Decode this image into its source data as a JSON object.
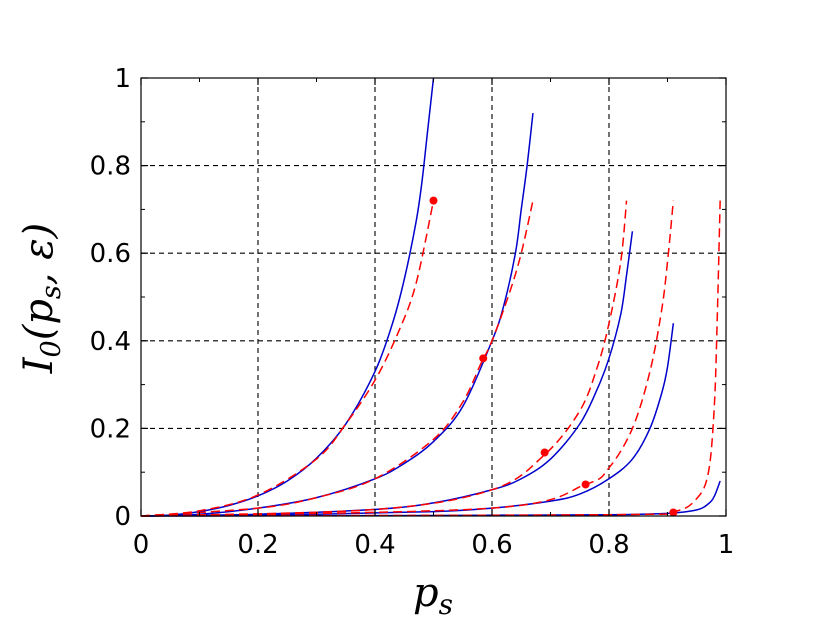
{
  "chart_data": {
    "type": "line",
    "xlabel": "p_s",
    "ylabel": "I_0(p_s, ε)",
    "xlim": [
      0,
      1
    ],
    "ylim": [
      0,
      1
    ],
    "x_ticks": [
      "0",
      "0.2",
      "0.4",
      "0.6",
      "0.8",
      "1"
    ],
    "y_ticks": [
      "0",
      "0.2",
      "0.4",
      "0.6",
      "0.8",
      "1"
    ],
    "grid": true,
    "series": [
      {
        "style": "solid",
        "color": "#0000cc",
        "x": [
          0.0,
          0.05,
          0.1,
          0.15,
          0.2,
          0.25,
          0.3,
          0.35,
          0.4,
          0.43,
          0.45,
          0.47,
          0.48,
          0.49,
          0.5
        ],
        "y": [
          0.0,
          0.002,
          0.01,
          0.024,
          0.046,
          0.08,
          0.132,
          0.21,
          0.33,
          0.44,
          0.54,
          0.67,
          0.76,
          0.88,
          1.0
        ]
      },
      {
        "style": "solid",
        "color": "#0000cc",
        "x": [
          0.0,
          0.1,
          0.2,
          0.3,
          0.4,
          0.45,
          0.5,
          0.55,
          0.6,
          0.62,
          0.64,
          0.65,
          0.66,
          0.67
        ],
        "y": [
          0.0,
          0.004,
          0.018,
          0.042,
          0.085,
          0.12,
          0.17,
          0.25,
          0.4,
          0.48,
          0.6,
          0.7,
          0.8,
          0.92
        ]
      },
      {
        "style": "solid",
        "color": "#0000cc",
        "x": [
          0.0,
          0.2,
          0.4,
          0.5,
          0.6,
          0.65,
          0.7,
          0.75,
          0.78,
          0.8,
          0.82,
          0.83,
          0.84
        ],
        "y": [
          0.0,
          0.004,
          0.015,
          0.03,
          0.06,
          0.085,
          0.13,
          0.21,
          0.29,
          0.36,
          0.46,
          0.55,
          0.65
        ]
      },
      {
        "style": "solid",
        "color": "#0000cc",
        "x": [
          0.0,
          0.3,
          0.5,
          0.6,
          0.7,
          0.75,
          0.8,
          0.84,
          0.87,
          0.89,
          0.9,
          0.91
        ],
        "y": [
          0.0,
          0.004,
          0.01,
          0.018,
          0.034,
          0.05,
          0.085,
          0.13,
          0.2,
          0.28,
          0.34,
          0.44
        ]
      },
      {
        "style": "solid",
        "color": "#0000cc",
        "x": [
          0.0,
          0.5,
          0.8,
          0.9,
          0.95,
          0.97,
          0.98,
          0.99
        ],
        "y": [
          0.0,
          0.001,
          0.003,
          0.006,
          0.014,
          0.028,
          0.045,
          0.08
        ]
      },
      {
        "style": "dashed",
        "color": "#ff0000",
        "x": [
          0.0,
          0.1,
          0.2,
          0.3,
          0.35,
          0.4,
          0.44,
          0.47,
          0.5
        ],
        "y": [
          0.0,
          0.012,
          0.048,
          0.13,
          0.21,
          0.31,
          0.42,
          0.53,
          0.72
        ]
      },
      {
        "style": "dashed",
        "color": "#ff0000",
        "x": [
          0.0,
          0.2,
          0.3,
          0.4,
          0.5,
          0.55,
          0.58,
          0.6,
          0.63,
          0.65,
          0.67
        ],
        "y": [
          0.0,
          0.018,
          0.042,
          0.085,
          0.175,
          0.26,
          0.345,
          0.4,
          0.51,
          0.6,
          0.72
        ]
      },
      {
        "style": "dashed",
        "color": "#ff0000",
        "x": [
          0.0,
          0.4,
          0.6,
          0.69,
          0.75,
          0.78,
          0.8,
          0.82,
          0.83
        ],
        "y": [
          0.0,
          0.015,
          0.06,
          0.14,
          0.24,
          0.34,
          0.44,
          0.58,
          0.72
        ]
      },
      {
        "style": "dashed",
        "color": "#ff0000",
        "x": [
          0.0,
          0.6,
          0.76,
          0.8,
          0.84,
          0.87,
          0.89,
          0.9,
          0.91
        ],
        "y": [
          0.0,
          0.018,
          0.072,
          0.11,
          0.2,
          0.33,
          0.47,
          0.58,
          0.72
        ]
      },
      {
        "style": "dashed",
        "color": "#ff0000",
        "x": [
          0.0,
          0.8,
          0.91,
          0.95,
          0.97,
          0.98,
          0.985,
          0.99
        ],
        "y": [
          0.0,
          0.003,
          0.01,
          0.04,
          0.1,
          0.25,
          0.45,
          0.72
        ]
      }
    ],
    "markers": {
      "color": "#ff0000",
      "x": [
        0.5,
        0.585,
        0.69,
        0.76,
        0.91
      ],
      "y": [
        0.72,
        0.36,
        0.145,
        0.072,
        0.008
      ]
    }
  }
}
